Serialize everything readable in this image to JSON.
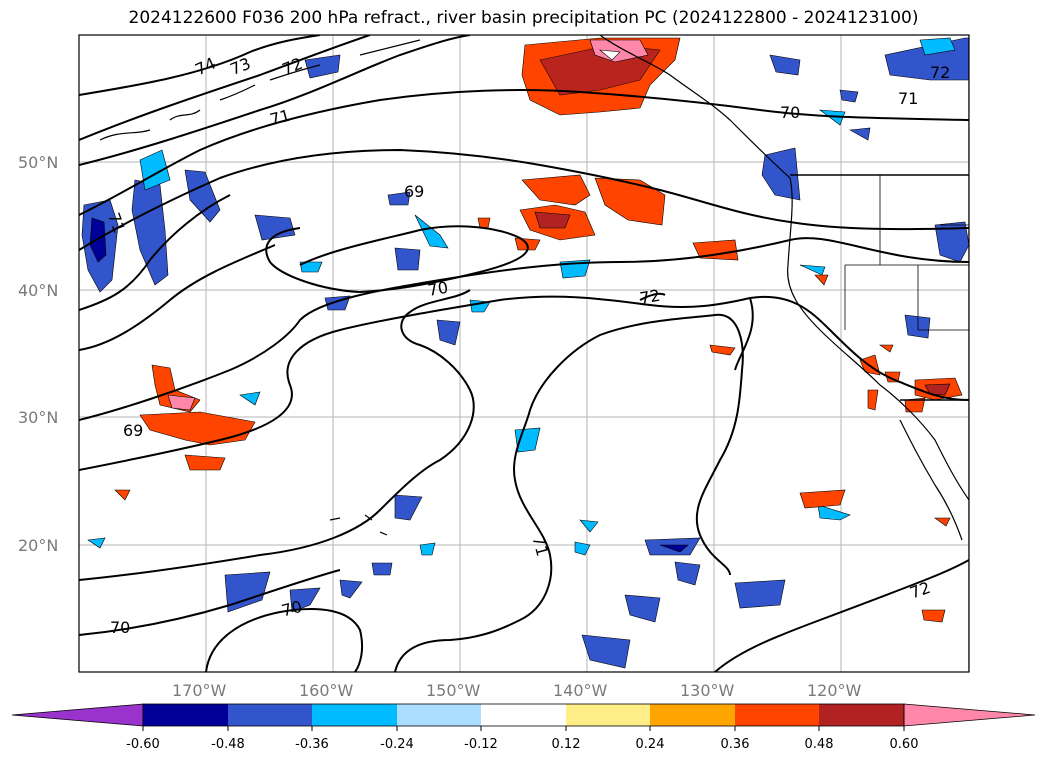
{
  "title": "2024122600 F036 200 hPa refract., river basin precipitation PC (2024122800 - 2024123100)",
  "map": {
    "projection": "cylindrical",
    "lon_range": [
      -180,
      -110
    ],
    "lat_range": [
      10,
      60
    ],
    "lat_ticks": [
      {
        "value": 50,
        "label": "50°N"
      },
      {
        "value": 40,
        "label": "40°N"
      },
      {
        "value": 30,
        "label": "30°N"
      },
      {
        "value": 20,
        "label": "20°N"
      }
    ],
    "lon_ticks": [
      {
        "value": -170,
        "label": "170°W"
      },
      {
        "value": -160,
        "label": "160°W"
      },
      {
        "value": -150,
        "label": "150°W"
      },
      {
        "value": -140,
        "label": "140°W"
      },
      {
        "value": -130,
        "label": "130°W"
      },
      {
        "value": -120,
        "label": "120°W"
      }
    ],
    "grid": true,
    "contour_labels": [
      "74",
      "73",
      "72",
      "71",
      "69",
      "70",
      "72",
      "70",
      "71",
      "72",
      "71",
      "72",
      "69",
      "70",
      "70",
      "71",
      "72"
    ]
  },
  "colorbar": {
    "ticks": [
      "-0.60",
      "-0.48",
      "-0.36",
      "-0.24",
      "-0.12",
      "0.12",
      "0.24",
      "0.36",
      "0.48",
      "0.60"
    ],
    "colors": [
      "#9933cc",
      "#000099",
      "#3355cc",
      "#00bbff",
      "#aaddff",
      "#ffffff",
      "#ffee88",
      "#ffa500",
      "#ff4400",
      "#b22222",
      "#ff88aa"
    ]
  }
}
